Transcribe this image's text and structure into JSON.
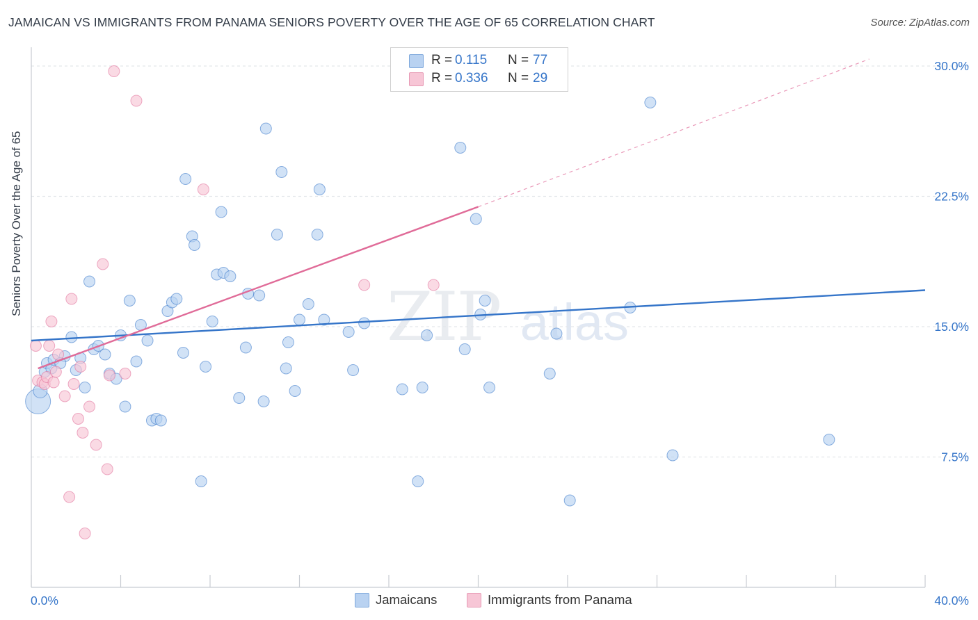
{
  "title": "JAMAICAN VS IMMIGRANTS FROM PANAMA SENIORS POVERTY OVER THE AGE OF 65 CORRELATION CHART",
  "source": "Source: ZipAtlas.com",
  "watermark": {
    "zip": "ZIP",
    "atlas": "atlas"
  },
  "colors": {
    "blue": "#3575c9",
    "blue_fill": "#b9d2f1",
    "pink": "#e06b98",
    "pink_fill": "#f7c6d6",
    "grid": "#e3e6ea",
    "axis_text": "#3575c9"
  },
  "legend": {
    "rows": [
      {
        "r_label": "R =",
        "r_value": "0.115",
        "n_label": "N =",
        "n_value": "77"
      },
      {
        "r_label": "R =",
        "r_value": "0.336",
        "n_label": "N =",
        "n_value": "29"
      }
    ]
  },
  "bottom_legend": {
    "series1": "Jamaicans",
    "series2": "Immigrants from Panama"
  },
  "chart_data": {
    "type": "scatter",
    "title": "JAMAICAN VS IMMIGRANTS FROM PANAMA SENIORS POVERTY OVER THE AGE OF 65 CORRELATION CHART",
    "xlabel": "",
    "ylabel": "Seniors Poverty Over the Age of 65",
    "xlim": [
      0,
      40
    ],
    "ylim": [
      0,
      31
    ],
    "x_tick_labels": [
      "0.0%",
      "40.0%"
    ],
    "y_ticks": [
      7.5,
      15.0,
      22.5,
      30.0
    ],
    "y_tick_labels": [
      "7.5%",
      "15.0%",
      "22.5%",
      "30.0%"
    ],
    "grid": "horizontal dashed",
    "legend_position": "top-center",
    "series": [
      {
        "name": "Jamaicans",
        "color": "#3575c9",
        "fill": "#b9d2f1",
        "points": [
          [
            0.3,
            10.7,
            18
          ],
          [
            0.4,
            11.3,
            10
          ],
          [
            0.6,
            12.4,
            8
          ],
          [
            0.7,
            12.9,
            8
          ],
          [
            0.9,
            12.6,
            8
          ],
          [
            1.0,
            13.1,
            8
          ],
          [
            1.5,
            13.3,
            8
          ],
          [
            1.3,
            12.9,
            8
          ],
          [
            1.8,
            14.4,
            8
          ],
          [
            2.0,
            12.5,
            8
          ],
          [
            2.2,
            13.2,
            8
          ],
          [
            2.4,
            11.5,
            8
          ],
          [
            2.6,
            17.6,
            8
          ],
          [
            2.8,
            13.7,
            8
          ],
          [
            3.0,
            13.9,
            8
          ],
          [
            3.3,
            13.4,
            8
          ],
          [
            3.5,
            12.3,
            8
          ],
          [
            3.8,
            12.0,
            8
          ],
          [
            4.0,
            14.5,
            8
          ],
          [
            4.2,
            10.4,
            8
          ],
          [
            4.4,
            16.5,
            8
          ],
          [
            4.7,
            13.0,
            8
          ],
          [
            4.9,
            15.1,
            8
          ],
          [
            5.2,
            14.2,
            8
          ],
          [
            5.4,
            9.6,
            8
          ],
          [
            5.6,
            9.7,
            8
          ],
          [
            5.8,
            9.6,
            8
          ],
          [
            6.1,
            15.9,
            8
          ],
          [
            6.3,
            16.4,
            8
          ],
          [
            6.5,
            16.6,
            8
          ],
          [
            6.8,
            13.5,
            8
          ],
          [
            6.9,
            23.5,
            8
          ],
          [
            7.2,
            20.2,
            8
          ],
          [
            7.3,
            19.7,
            8
          ],
          [
            7.6,
            6.1,
            8
          ],
          [
            7.8,
            12.7,
            8
          ],
          [
            8.1,
            15.3,
            8
          ],
          [
            8.3,
            18.0,
            8
          ],
          [
            8.5,
            21.6,
            8
          ],
          [
            8.6,
            18.1,
            8
          ],
          [
            8.9,
            17.9,
            8
          ],
          [
            9.3,
            10.9,
            8
          ],
          [
            9.6,
            13.8,
            8
          ],
          [
            9.7,
            16.9,
            8
          ],
          [
            10.2,
            16.8,
            8
          ],
          [
            10.4,
            10.7,
            8
          ],
          [
            10.5,
            26.4,
            8
          ],
          [
            11.0,
            20.3,
            8
          ],
          [
            11.2,
            23.9,
            8
          ],
          [
            11.4,
            12.6,
            8
          ],
          [
            11.5,
            14.1,
            8
          ],
          [
            11.8,
            11.3,
            8
          ],
          [
            12.0,
            15.4,
            8
          ],
          [
            12.4,
            16.3,
            8
          ],
          [
            12.8,
            20.3,
            8
          ],
          [
            12.9,
            22.9,
            8
          ],
          [
            13.1,
            15.4,
            8
          ],
          [
            14.2,
            14.7,
            8
          ],
          [
            14.4,
            12.5,
            8
          ],
          [
            14.9,
            15.2,
            8
          ],
          [
            16.6,
            11.4,
            8
          ],
          [
            17.3,
            6.1,
            8
          ],
          [
            17.5,
            11.5,
            8
          ],
          [
            17.7,
            14.5,
            8
          ],
          [
            19.2,
            25.3,
            8
          ],
          [
            19.4,
            13.7,
            8
          ],
          [
            19.9,
            21.2,
            8
          ],
          [
            20.1,
            15.7,
            8
          ],
          [
            20.3,
            16.5,
            8
          ],
          [
            20.5,
            11.5,
            8
          ],
          [
            23.2,
            12.3,
            8
          ],
          [
            23.5,
            14.6,
            8
          ],
          [
            24.1,
            5.0,
            8
          ],
          [
            26.8,
            16.1,
            8
          ],
          [
            27.7,
            27.9,
            8
          ],
          [
            28.7,
            7.6,
            8
          ],
          [
            35.7,
            8.5,
            8
          ]
        ],
        "trend": {
          "x": [
            0.0,
            40.0
          ],
          "y": [
            14.2,
            17.1
          ],
          "style": "solid"
        }
      },
      {
        "name": "Immigrants from Panama",
        "color": "#e06b98",
        "fill": "#f7c6d6",
        "points": [
          [
            0.2,
            13.9,
            8
          ],
          [
            0.3,
            11.9,
            8
          ],
          [
            0.5,
            11.8,
            8
          ],
          [
            0.6,
            11.7,
            8
          ],
          [
            0.7,
            12.1,
            8
          ],
          [
            0.8,
            13.9,
            8
          ],
          [
            0.9,
            15.3,
            8
          ],
          [
            1.0,
            11.8,
            8
          ],
          [
            1.1,
            12.4,
            8
          ],
          [
            1.2,
            13.4,
            8
          ],
          [
            1.5,
            11.0,
            8
          ],
          [
            1.7,
            5.2,
            8
          ],
          [
            1.8,
            16.6,
            8
          ],
          [
            1.9,
            11.7,
            8
          ],
          [
            2.1,
            9.7,
            8
          ],
          [
            2.2,
            12.7,
            8
          ],
          [
            2.3,
            8.9,
            8
          ],
          [
            2.4,
            3.1,
            8
          ],
          [
            2.6,
            10.4,
            8
          ],
          [
            2.9,
            8.2,
            8
          ],
          [
            3.2,
            18.6,
            8
          ],
          [
            3.4,
            6.8,
            8
          ],
          [
            3.5,
            12.2,
            8
          ],
          [
            3.7,
            29.7,
            8
          ],
          [
            4.2,
            12.3,
            8
          ],
          [
            4.7,
            28.0,
            8
          ],
          [
            7.7,
            22.9,
            8
          ],
          [
            14.9,
            17.4,
            8
          ],
          [
            18.0,
            17.4,
            8
          ]
        ],
        "trend": {
          "x": [
            0.3,
            20.0
          ],
          "y": [
            12.6,
            21.9
          ],
          "style": "solid",
          "extension": {
            "x": [
              20.0,
              37.5
            ],
            "y": [
              21.9,
              30.4
            ],
            "style": "dashed"
          }
        }
      }
    ]
  }
}
